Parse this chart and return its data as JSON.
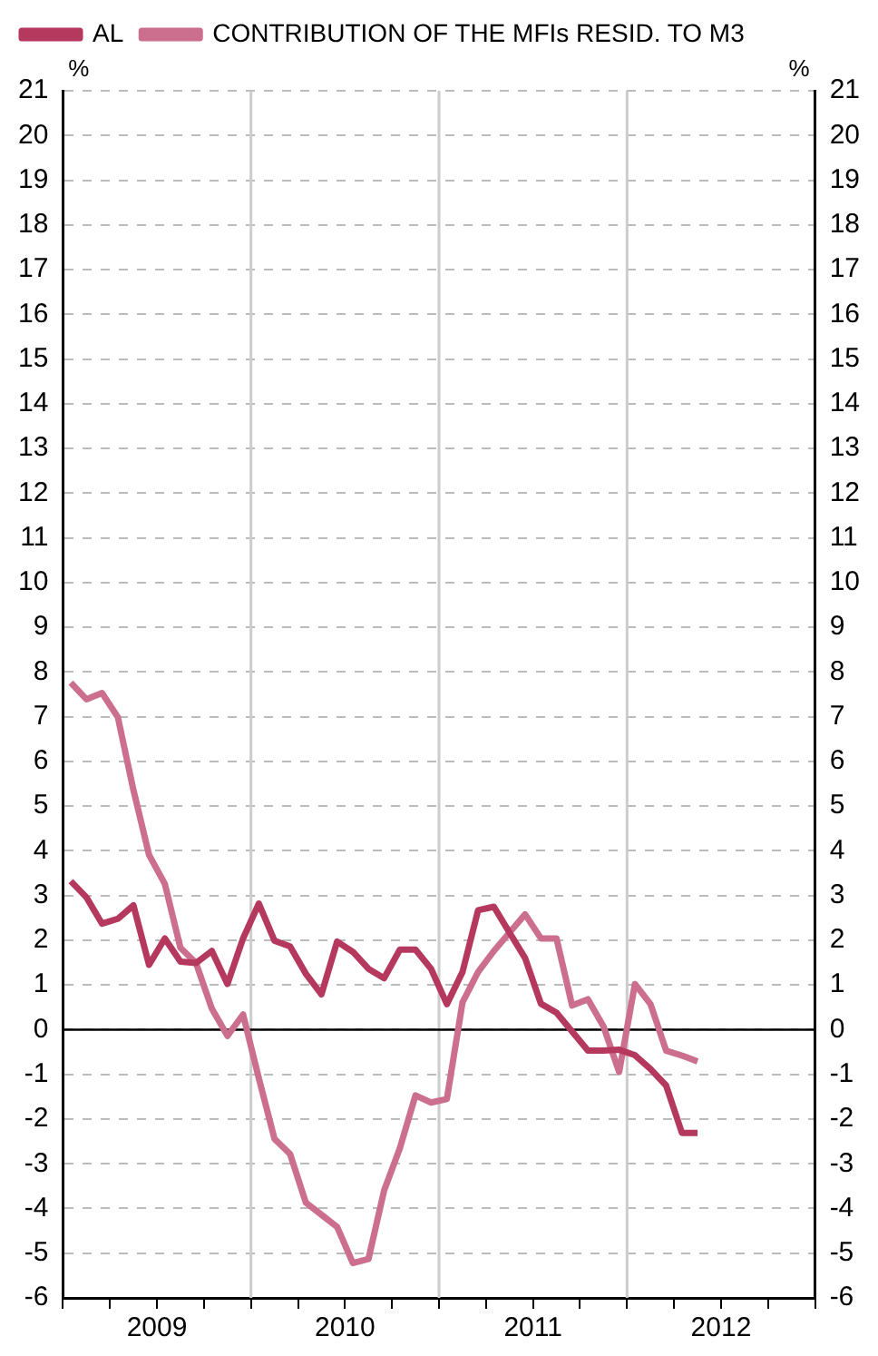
{
  "chart_data": {
    "type": "line",
    "ylabel": "%",
    "y2label": "%",
    "legend": "top left",
    "grid": "y",
    "marker": "none",
    "line_style": "solid",
    "x": [
      2009.042,
      2009.125,
      2009.208,
      2009.292,
      2009.375,
      2009.458,
      2009.542,
      2009.625,
      2009.708,
      2009.792,
      2009.875,
      2009.958,
      2010.042,
      2010.125,
      2010.208,
      2010.292,
      2010.375,
      2010.458,
      2010.542,
      2010.625,
      2010.708,
      2010.792,
      2010.875,
      2010.958,
      2011.042,
      2011.125,
      2011.208,
      2011.292,
      2011.375,
      2011.458,
      2011.542,
      2011.625,
      2011.708,
      2011.792,
      2011.875,
      2011.958,
      2012.042,
      2012.125,
      2012.208,
      2012.292,
      2012.375
    ],
    "series": [
      {
        "name": "AL",
        "color": "#b5385f",
        "values": [
          3.32,
          2.96,
          2.37,
          2.48,
          2.78,
          1.45,
          2.04,
          1.52,
          1.49,
          1.76,
          1.02,
          2.04,
          2.82,
          1.99,
          1.86,
          1.25,
          0.79,
          1.97,
          1.74,
          1.36,
          1.15,
          1.79,
          1.79,
          1.36,
          0.57,
          1.29,
          2.67,
          2.75,
          2.17,
          1.6,
          0.58,
          0.38,
          -0.04,
          -0.47,
          -0.47,
          -0.45,
          -0.57,
          -0.88,
          -1.25,
          -2.31,
          -2.31
        ]
      },
      {
        "name": "CONTRIBUTION OF THE MFIs RESID. TO M3",
        "color": "#cc6f8e",
        "values": [
          7.76,
          7.39,
          7.53,
          6.99,
          5.36,
          3.91,
          3.26,
          1.83,
          1.49,
          0.47,
          -0.14,
          0.34,
          -1.09,
          -2.44,
          -2.78,
          -3.87,
          -4.14,
          -4.41,
          -5.22,
          -5.13,
          -3.6,
          -2.65,
          -1.47,
          -1.63,
          -1.55,
          0.61,
          1.29,
          1.76,
          2.17,
          2.58,
          2.04,
          2.04,
          0.54,
          0.68,
          0.07,
          -0.95,
          1.02,
          0.57,
          -0.47,
          -0.58,
          -0.71
        ]
      }
    ],
    "xlim": [
      2009,
      2013
    ],
    "xticks": [
      {
        "value": 2009,
        "label": null
      },
      {
        "value": 2009.25,
        "label": null
      },
      {
        "value": 2009.5,
        "label": "2009"
      },
      {
        "value": 2009.75,
        "label": null
      },
      {
        "value": 2010,
        "label": null
      },
      {
        "value": 2010.25,
        "label": null
      },
      {
        "value": 2010.5,
        "label": "2010"
      },
      {
        "value": 2010.75,
        "label": null
      },
      {
        "value": 2011,
        "label": null
      },
      {
        "value": 2011.25,
        "label": null
      },
      {
        "value": 2011.5,
        "label": "2011"
      },
      {
        "value": 2011.75,
        "label": null
      },
      {
        "value": 2012,
        "label": null
      },
      {
        "value": 2012.25,
        "label": null
      },
      {
        "value": 2012.5,
        "label": "2012"
      },
      {
        "value": 2012.75,
        "label": null
      },
      {
        "value": 2013,
        "label": null
      }
    ],
    "ylim": [
      -6,
      21
    ],
    "yticks": [
      -6,
      -5,
      -4,
      -3,
      -2,
      -1,
      0,
      1,
      2,
      3,
      4,
      5,
      6,
      7,
      8,
      9,
      10,
      11,
      12,
      13,
      14,
      15,
      16,
      17,
      18,
      19,
      20,
      21
    ],
    "y2lim": [
      -6,
      21
    ],
    "y2ticks": [
      -6,
      -5,
      -4,
      -3,
      -2,
      -1,
      0,
      1,
      2,
      3,
      4,
      5,
      6,
      7,
      8,
      9,
      10,
      11,
      12,
      13,
      14,
      15,
      16,
      17,
      18,
      19,
      20,
      21
    ],
    "ref_lines": [
      {
        "axis": "x",
        "value": 2010,
        "color": "#cccccc"
      },
      {
        "axis": "x",
        "value": 2011,
        "color": "#cccccc"
      },
      {
        "axis": "x",
        "value": 2012,
        "color": "#cccccc"
      },
      {
        "axis": "y",
        "value": 0,
        "color": "#000000"
      }
    ]
  }
}
